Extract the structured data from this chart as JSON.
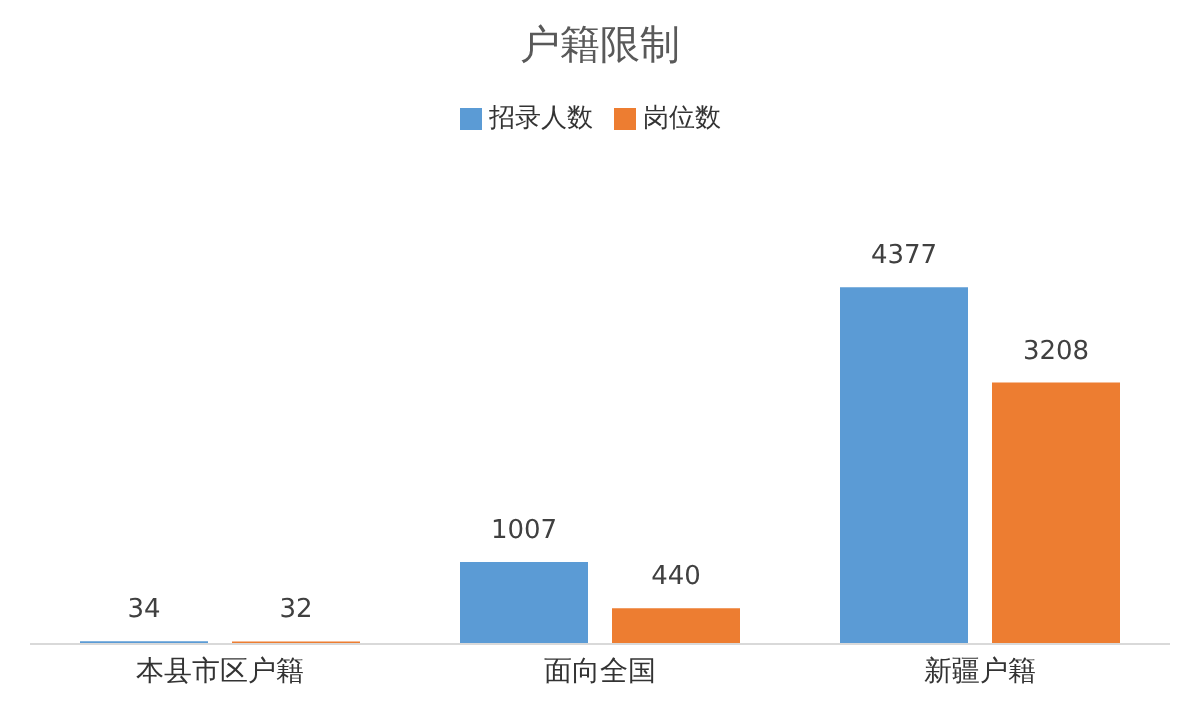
{
  "chart_data": {
    "type": "bar",
    "title": "户籍限制",
    "categories": [
      "本县市区户籍",
      "面向全国",
      "新疆户籍"
    ],
    "series": [
      {
        "name": "招录人数",
        "color": "#5b9bd5",
        "values": [
          34,
          1007,
          4377
        ]
      },
      {
        "name": "岗位数",
        "color": "#ed7d31",
        "values": [
          32,
          440,
          3208
        ]
      }
    ],
    "data_labels": true,
    "legend": "top",
    "grid": false
  }
}
